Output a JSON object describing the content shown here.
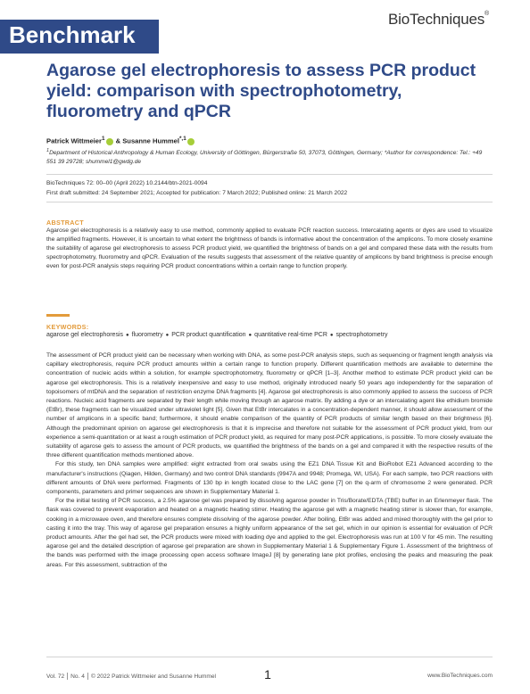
{
  "header": {
    "logo": "BioTechniques",
    "banner": "Benchmark"
  },
  "article": {
    "title": "Agarose gel electrophoresis to assess PCR product yield: comparison with spectrophotometry, fluorometry and qPCR",
    "authors": {
      "author1": "Patrick Wittmeier",
      "author1_sup": "1",
      "connector": " & ",
      "author2": "Susanne Hummel",
      "author2_sup": "*,1"
    },
    "affiliation_sup": "1",
    "affiliation": "Department of Historical Anthropology & Human Ecology, University of Göttingen, Bürgerstraße 50, 37073, Göttingen, Germany; *Author for correspondence: Tel.: +49 551 39 29728; shummel1@gwdg.de",
    "journal_line": "BioTechniques 72: 00–00 (April 2022) 10.2144/btn-2021-0094",
    "dates_line": "First draft submitted: 24 September 2021; Accepted for publication: 7 March 2022; Published online: 21 March 2022"
  },
  "abstract": {
    "heading": "ABSTRACT",
    "text": "Agarose gel electrophoresis is a relatively easy to use method, commonly applied to evaluate PCR reaction success. Intercalating agents or dyes are used to visualize the amplified fragments. However, it is uncertain to what extent the brightness of bands is informative about the concentration of the amplicons. To more closely examine the suitability of agarose gel electrophoresis to assess PCR product yield, we quantified the brightness of bands on a gel and compared these data with the results from spectrophotometry, fluorometry and qPCR. Evaluation of the results suggests that assessment of the relative quantity of amplicons by band brightness is precise enough even for post-PCR analysis steps requiring PCR product concentrations within a certain range to function properly."
  },
  "keywords": {
    "heading": "KEYWORDS:",
    "separator": "●",
    "items": [
      "agarose gel electrophoresis",
      "fluorometry",
      "PCR product quantification",
      "quantitative real-time PCR",
      "spectrophotometry"
    ]
  },
  "body": {
    "paragraphs": [
      "The assessment of PCR product yield can be necessary when working with DNA, as some post-PCR analysis steps, such as sequencing or fragment length analysis via capillary electrophoresis, require PCR product amounts within a certain range to function properly. Different quantification methods are available to determine the concentration of nucleic acids within a solution, for example spectrophotometry, fluorometry or qPCR [1–3]. Another method to estimate PCR product yield can be agarose gel electrophoresis. This is a relatively inexpensive and easy to use method, originally introduced nearly 50 years ago independently for the separation of topoisomers of mtDNA and the separation of restriction enzyme DNA fragments [4]. Agarose gel electrophoresis is also commonly applied to assess the success of PCR reactions. Nucleic acid fragments are separated by their length while moving through an agarose matrix. By adding a dye or an intercalating agent like ethidium bromide (EtBr), these fragments can be visualized under ultraviolet light [5]. Given that EtBr intercalates in a concentration-dependent manner, it should allow assessment of the number of amplicons in a specific band; furthermore, it should enable comparison of the quantity of PCR products of similar length based on their brightness [6]. Although the predominant opinion on agarose gel electrophoresis is that it is imprecise and therefore not suitable for the assessment of PCR product yield, from our experience a semi-quantitation or at least a rough estimation of PCR product yield, as required for many post-PCR applications, is possible. To more closely evaluate the suitability of agarose gels to assess the amount of PCR products, we quantified the brightness of the bands on a gel and compared it with the respective results of the three different quantification methods mentioned above.",
      "For this study, ten DNA samples were amplified: eight extracted from oral swabs using the EZ1 DNA Tissue Kit and BioRobot EZ1 Advanced according to the manufacturer's instructions (Qiagen, Hilden, Germany) and two control DNA standards (9947A and 9948; Promega, WI, USA). For each sample, two PCR reactions with different amounts of DNA were performed. Fragments of 130 bp in length located close to the LAC gene [7] on the q-arm of chromosome 2 were generated. PCR components, parameters and primer sequences are shown in Supplementary Material 1.",
      "For the initial testing of PCR success, a 2.5% agarose gel was prepared by dissolving agarose powder in Tris/Borate/EDTA (TBE) buffer in an Erlenmeyer flask. The flask was covered to prevent evaporation and heated on a magnetic heating stirrer. Heating the agarose gel with a magnetic heating stirrer is slower than, for example, cooking in a microwave oven, and therefore ensures complete dissolving of the agarose powder. After boiling, EtBr was added and mixed thoroughly with the gel prior to casting it into the tray. This way of agarose gel preparation ensures a highly uniform appearance of the set gel, which in our opinion is essential for evaluation of PCR product amounts. After the gel had set, the PCR products were mixed with loading dye and applied to the gel. Electrophoresis was run at 100 V for 45 min. The resulting agarose gel and the detailed description of agarose gel preparation are shown in Supplementary Material 1 & Supplementary Figure 1. Assessment of the brightness of the bands was performed with the image processing open access software ImageJ [8] by generating lane plot profiles, enclosing the peaks and measuring the peak areas. For this assessment, subtraction of the"
    ]
  },
  "footer": {
    "volume": "Vol. 72",
    "issue": "No. 4",
    "copyright": "© 2022 Patrick Wittmeier and Susanne Hummel",
    "page": "1",
    "website": "www.BioTechniques.com"
  },
  "colors": {
    "brand_blue": "#2f4a88",
    "accent_orange": "#e39b3b",
    "orcid_green": "#a6ce39"
  }
}
